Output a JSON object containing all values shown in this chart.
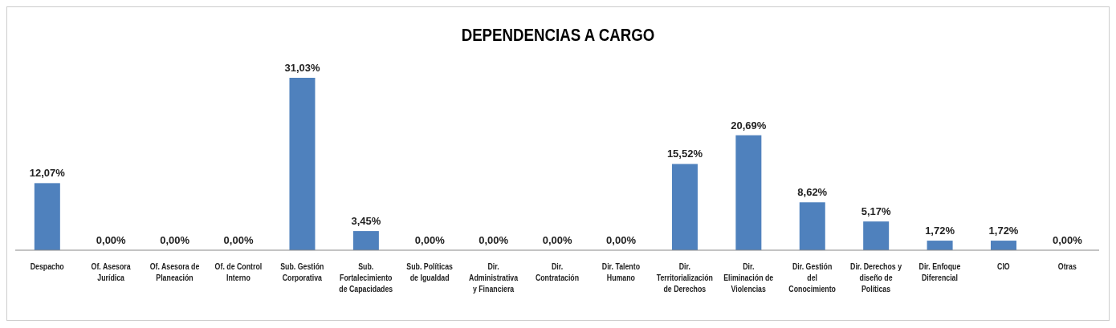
{
  "chart_data": {
    "type": "bar",
    "title": "DEPENDENCIAS A CARGO",
    "categories": [
      "Despacho",
      "Of. Asesora Jurídica",
      "Of. Asesora de Planeación",
      "Of. de Control Interno",
      "Sub. Gestión Corporativa",
      "Sub. Fortalecimiento de Capacidades",
      "Sub. Políticas de Igualdad",
      "Dir. Administrativa y Financiera",
      "Dir. Contratación",
      "Dir. Talento Humano",
      "Dir. Territorialización de Derechos",
      "Dir. Eliminación de Violencias",
      "Dir. Gestión del Conocimiento",
      "Dir. Derechos y diseño de Políticas",
      "Dir. Enfoque Diferencial",
      "CIO",
      "Otras"
    ],
    "values": [
      12.07,
      0,
      0,
      0,
      31.03,
      3.45,
      0,
      0,
      0,
      0,
      15.52,
      20.69,
      8.62,
      5.17,
      1.72,
      1.72,
      0
    ],
    "value_labels": [
      "12,07%",
      "0,00%",
      "0,00%",
      "0,00%",
      "31,03%",
      "3,45%",
      "0,00%",
      "0,00%",
      "0,00%",
      "0,00%",
      "15,52%",
      "20,69%",
      "8,62%",
      "5,17%",
      "1,72%",
      "1,72%",
      "0,00%"
    ],
    "color": "#4f81bd"
  }
}
